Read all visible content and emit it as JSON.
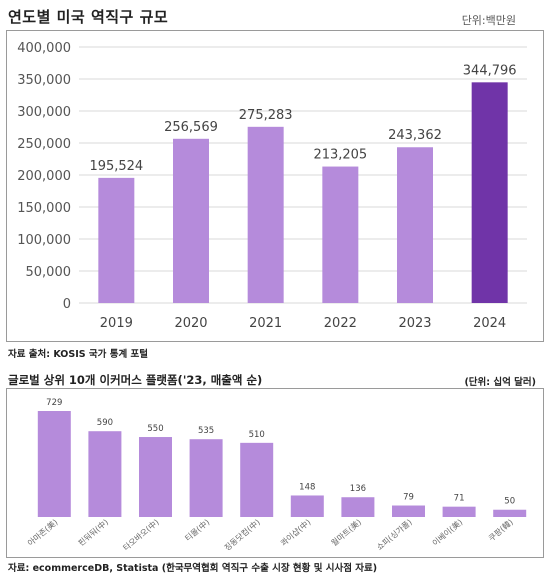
{
  "header": {
    "title": "연도별 미국 역직구 규모",
    "unit": "단위:백만원"
  },
  "footer": {
    "source1": "자료 출처: KOSIS 국가 통계 포털",
    "title2": "글로벌 상위 10개 이커머스 플랫폼('23, 매출액 순)",
    "unit2": "(단위: 십억 달러)",
    "source2": "자료: ecommerceDB, Statista (한국무역협회 역직구 수출 시장 현황 및 시사점 자료)"
  },
  "chart_data": [
    {
      "type": "bar",
      "title": "연도별 미국 역직구 규모",
      "categories": [
        "2019",
        "2020",
        "2021",
        "2022",
        "2023",
        "2024"
      ],
      "values": [
        195524,
        256569,
        275283,
        213205,
        243362,
        344796
      ],
      "value_labels": [
        "195,524",
        "256,569",
        "275,283",
        "213,205",
        "243,362",
        "344,796"
      ],
      "ylim": [
        0,
        400000
      ],
      "yticks": [
        0,
        50000,
        100000,
        150000,
        200000,
        250000,
        300000,
        350000,
        400000
      ],
      "ytick_labels": [
        "0",
        "50,000",
        "100,000",
        "150,000",
        "200,000",
        "250,000",
        "300,000",
        "350,000",
        "400,000"
      ],
      "grid": true,
      "colors": {
        "bar": "#b58bdb",
        "highlight": "#7034a8",
        "grid": "#d9d9d9"
      }
    },
    {
      "type": "bar",
      "title": "글로벌 상위 10개 이커머스 플랫폼('23, 매출액 순)",
      "categories": [
        "아마존(美)",
        "핀둬둬(中)",
        "타오바오(中)",
        "티몰(中)",
        "징동닷컴(中)",
        "콰이샵(中)",
        "월마트(美)",
        "쇼피(싱가폴)",
        "이베이(美)",
        "쿠팡(韓)"
      ],
      "values": [
        729,
        590,
        550,
        535,
        510,
        148,
        136,
        79,
        71,
        50
      ],
      "value_labels": [
        "729",
        "590",
        "550",
        "535",
        "510",
        "148",
        "136",
        "79",
        "71",
        "50"
      ],
      "grid": false,
      "colors": {
        "bar": "#b58bdb"
      }
    }
  ]
}
